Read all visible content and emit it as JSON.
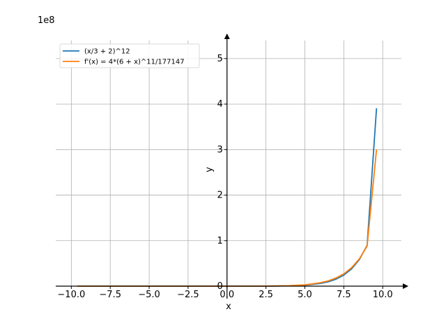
{
  "chart_data": {
    "type": "line",
    "title": "",
    "xlabel": "x",
    "ylabel": "y",
    "y_scale_label": "1e8",
    "xlim": [
      -11,
      11.2
    ],
    "ylim": [
      0,
      5.55
    ],
    "grid": true,
    "legend_position": "top-left",
    "x_ticks": [
      -10,
      -7.5,
      -5,
      -2.5,
      0,
      2.5,
      5,
      7.5,
      10
    ],
    "x_tick_labels": [
      "−10.0",
      "−7.5",
      "−5.0",
      "−2.5",
      "0.0",
      "2.5",
      "5.0",
      "7.5",
      "10.0"
    ],
    "y_ticks": [
      0,
      1,
      2,
      3,
      4,
      5
    ],
    "y_tick_labels": [
      "0",
      "1",
      "2",
      "3",
      "4",
      "5"
    ],
    "series": [
      {
        "name": "(x/3 + 2)^12",
        "color": "#1f77b4",
        "x": [
          -9.6,
          -6,
          -3,
          0,
          1,
          2,
          3,
          4,
          5,
          6,
          6.5,
          7,
          7.5,
          8,
          8.5,
          9,
          9.6
        ],
        "y": [
          0.0,
          0.0,
          0.0,
          4e-05,
          0.0002,
          0.0007,
          0.0024,
          0.0075,
          0.0218,
          0.0596,
          0.0958,
          0.1527,
          0.2421,
          0.3787,
          0.5838,
          0.8954,
          3.906
        ]
      },
      {
        "name": "f'(x) = 4*(6 + x)^11/177147",
        "color": "#ff7f0e",
        "x": [
          -9.6,
          -6,
          -3,
          0,
          1,
          2,
          3,
          4,
          5,
          6,
          6.5,
          7,
          7.5,
          8,
          8.5,
          9,
          9.6
        ],
        "y": [
          0.0,
          0.0,
          0.0,
          8e-05,
          0.0004,
          0.001,
          0.003,
          0.01,
          0.028,
          0.075,
          0.115,
          0.18,
          0.27,
          0.405,
          0.6,
          0.88,
          3.0
        ]
      }
    ]
  }
}
